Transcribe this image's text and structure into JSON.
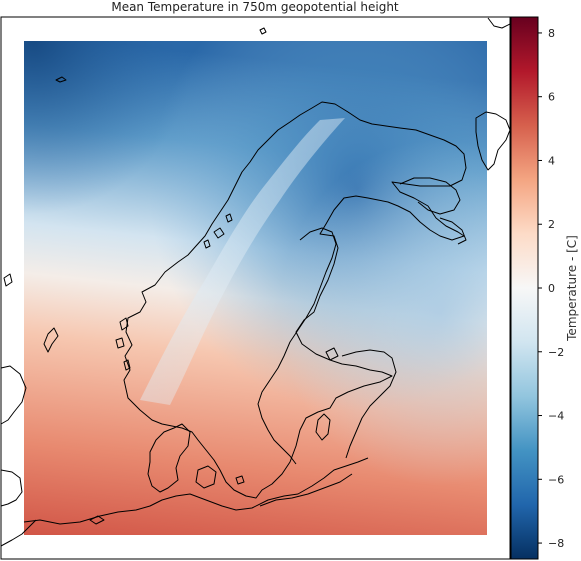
{
  "figure": {
    "title": "Mean Temperature in 750m geopotential height"
  },
  "colorbar": {
    "label": "Temperature - [C]",
    "range": [
      -8.5,
      8.5
    ],
    "ticks": [
      8,
      6,
      4,
      2,
      0,
      -2,
      -4,
      -6,
      -8
    ],
    "tick_labels": [
      "8",
      "6",
      "4",
      "2",
      "0",
      "−2",
      "−4",
      "−6",
      "−8"
    ],
    "colormap": "RdBu_r",
    "color_stops": [
      "#053061",
      "#2166ac",
      "#4393c3",
      "#92c5de",
      "#d1e5f0",
      "#f7f7f7",
      "#fddbc7",
      "#f4a582",
      "#d6604d",
      "#b2182b",
      "#67001f"
    ]
  },
  "map": {
    "region": "Scandinavia",
    "projection_frame": "square",
    "field_colors": {
      "cold": "#2f6fae",
      "cool": "#8bbbe0",
      "neutral": "#eef2f5",
      "warm": "#f3b199",
      "hot": "#d9604f"
    }
  }
}
